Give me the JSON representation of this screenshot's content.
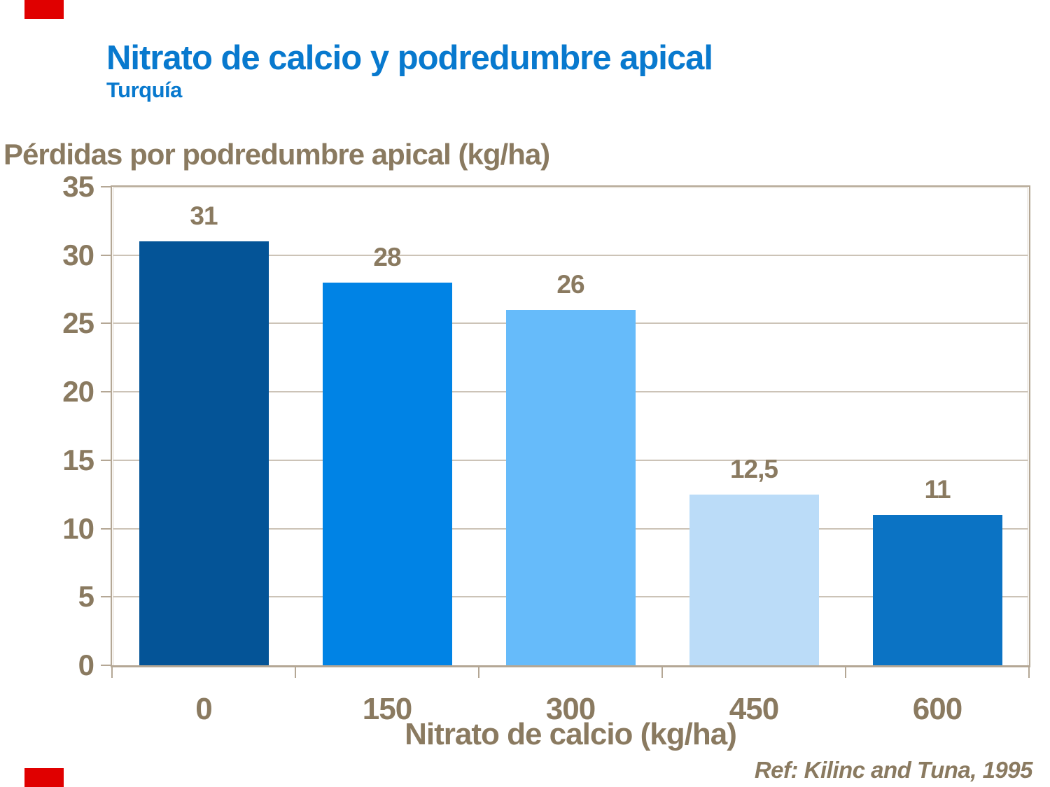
{
  "slide": {
    "title": "Nitrato de calcio y podredumbre apical",
    "subtitle": "Turquía",
    "reference": "Ref: Kilinc and Tuna, 1995",
    "accent_red": "#E00000",
    "title_color": "#0879CE",
    "text_color_brown": "#8A7A60"
  },
  "chart_data": {
    "type": "bar",
    "title": "",
    "ylabel": "Pérdidas por podredumbre apical (kg/ha)",
    "xlabel": "Nitrato de calcio (kg/ha)",
    "categories": [
      "0",
      "150",
      "300",
      "450",
      "600"
    ],
    "values": [
      31,
      28,
      26,
      12.5,
      11
    ],
    "value_labels": [
      "31",
      "28",
      "26",
      "12,5",
      "11"
    ],
    "bar_colors": [
      "#045497",
      "#0083E5",
      "#66BBFA",
      "#BBDCF8",
      "#0B73C4"
    ],
    "ylim": [
      0,
      35
    ],
    "ytick_step": 5,
    "ytick_labels": [
      "0",
      "5",
      "10",
      "15",
      "20",
      "25",
      "30",
      "35"
    ],
    "grid": true,
    "legend_position": "none",
    "gridline_color": "#CCC3B7",
    "frame_color": "#B4A795"
  }
}
